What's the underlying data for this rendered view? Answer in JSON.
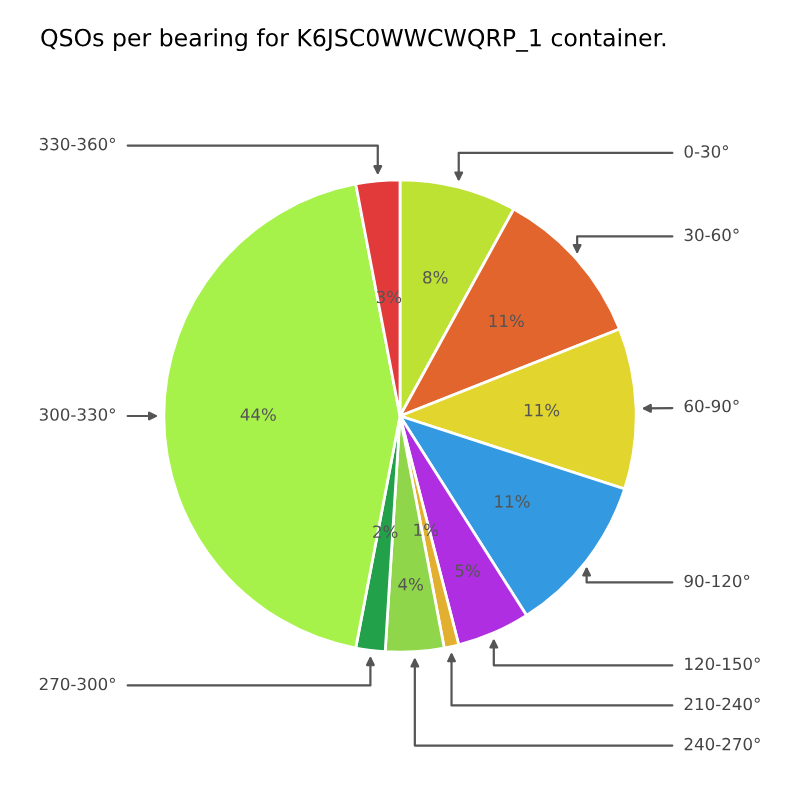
{
  "chart_data": {
    "type": "pie",
    "title": "QSOs per bearing for K6JSC0WWCWQRP_1 container.",
    "categories": [
      "0-30°",
      "30-60°",
      "60-90°",
      "90-120°",
      "120-150°",
      "210-240°",
      "240-270°",
      "270-300°",
      "300-330°",
      "330-360°"
    ],
    "values": [
      8,
      11,
      11,
      11,
      5,
      1,
      4,
      2,
      44,
      3
    ],
    "value_labels": [
      "8%",
      "11%",
      "11%",
      "11%",
      "5%",
      "1%",
      "4%",
      "2%",
      "44%",
      "3%"
    ],
    "colors": [
      "#bde234",
      "#e2652e",
      "#e2d62e",
      "#3399e0",
      "#b02ee2",
      "#e2b02e",
      "#8fd64a",
      "#23a04a",
      "#a6f24a",
      "#e23a3a"
    ],
    "legend": false
  }
}
